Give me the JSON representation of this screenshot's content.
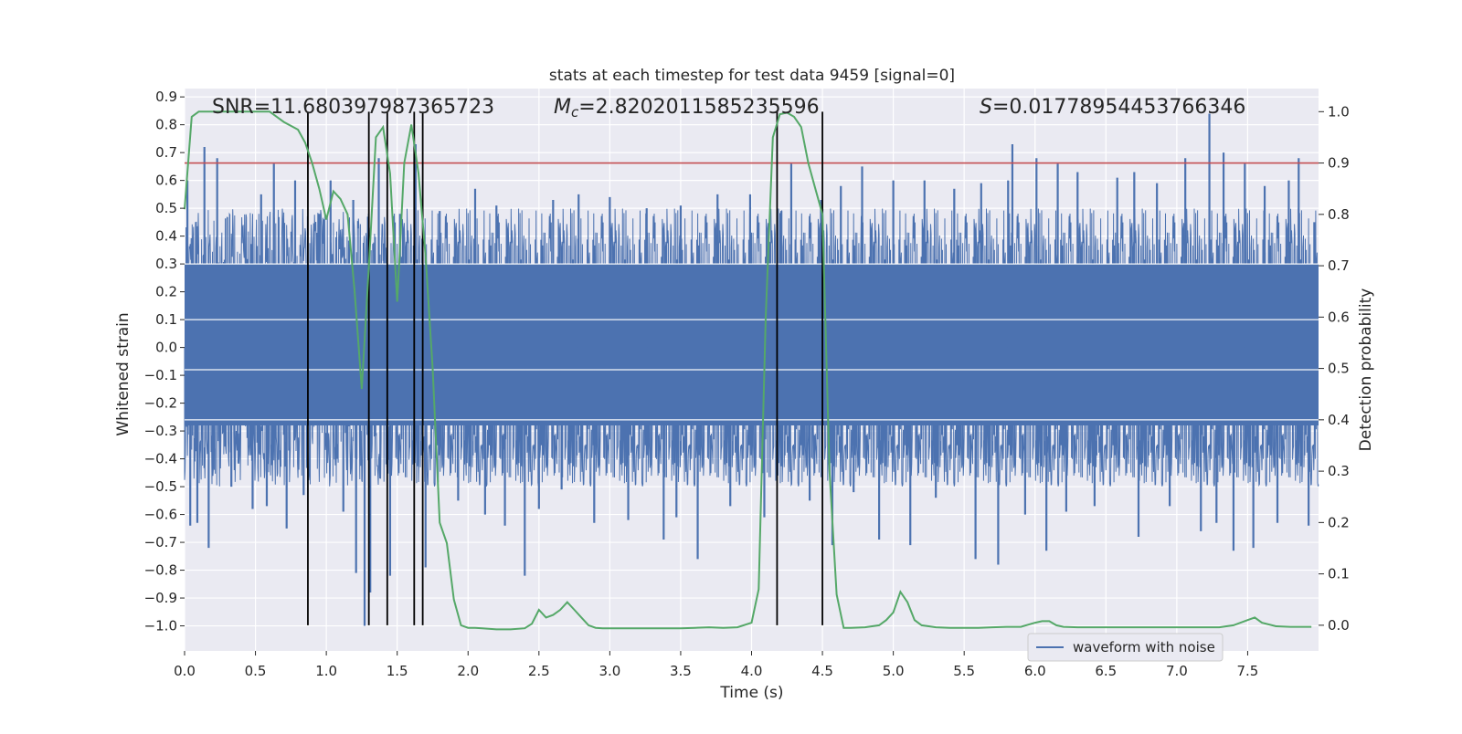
{
  "chart_data": {
    "type": "line",
    "title": "stats at each timestep for test data 9459 [signal=0]",
    "xlabel": "Time (s)",
    "ylabel": "Whitened strain",
    "y2label": "Detection probability",
    "xlim": [
      0,
      8
    ],
    "ylim": [
      -1.09,
      0.93
    ],
    "y2lim": [
      -0.05,
      1.045
    ],
    "x_ticks": [
      0.0,
      0.5,
      1.0,
      1.5,
      2.0,
      2.5,
      3.0,
      3.5,
      4.0,
      4.5,
      5.0,
      5.5,
      6.0,
      6.5,
      7.0,
      7.5
    ],
    "x_tick_labels": [
      "0.0",
      "0.5",
      "1.0",
      "1.5",
      "2.0",
      "2.5",
      "3.0",
      "3.5",
      "4.0",
      "4.5",
      "5.0",
      "5.5",
      "6.0",
      "6.5",
      "7.0",
      "7.5"
    ],
    "y_ticks": [
      0.9,
      0.8,
      0.7,
      0.6,
      0.5,
      0.4,
      0.3,
      0.2,
      0.1,
      0.0,
      -0.1,
      -0.2,
      -0.3,
      -0.4,
      -0.5,
      -0.6,
      -0.7,
      -0.8,
      -0.9,
      -1.0
    ],
    "y_tick_labels": [
      "0.9",
      "0.8",
      "0.7",
      "0.6",
      "0.5",
      "0.4",
      "0.3",
      "0.2",
      "0.1",
      "0.0",
      "−0.1",
      "−0.2",
      "−0.3",
      "−0.4",
      "−0.5",
      "−0.6",
      "−0.7",
      "−0.8",
      "−0.9",
      "−1.0"
    ],
    "y2_ticks": [
      1.0,
      0.9,
      0.8,
      0.7,
      0.6,
      0.5,
      0.4,
      0.3,
      0.2,
      0.1,
      0.0
    ],
    "y2_tick_labels": [
      "1.0",
      "0.9",
      "0.8",
      "0.7",
      "0.6",
      "0.5",
      "0.4",
      "0.3",
      "0.2",
      "0.1",
      "0.0"
    ],
    "annotations": {
      "snr": "SNR=11.680397987365723",
      "mc_symbol": "M",
      "mc_sub": "c",
      "mc_value": "=2.8202011585235596",
      "s_symbol": "S",
      "s_value": "=0.01778954453766346"
    },
    "threshold": 0.9,
    "vlines": [
      0.87,
      1.3,
      1.43,
      1.62,
      1.68,
      4.18,
      4.5
    ],
    "waveform": {
      "name": "waveform with noise",
      "band_low": -0.28,
      "band_high": 0.3,
      "spikes": [
        {
          "t": 0.02,
          "v": 0.6
        },
        {
          "t": 0.04,
          "v": -0.64
        },
        {
          "t": 0.09,
          "v": -0.63
        },
        {
          "t": 0.14,
          "v": 0.72
        },
        {
          "t": 0.17,
          "v": -0.72
        },
        {
          "t": 0.23,
          "v": 0.68
        },
        {
          "t": 0.33,
          "v": -0.5
        },
        {
          "t": 0.48,
          "v": -0.58
        },
        {
          "t": 0.54,
          "v": 0.55
        },
        {
          "t": 0.58,
          "v": -0.57
        },
        {
          "t": 0.63,
          "v": 0.66
        },
        {
          "t": 0.72,
          "v": -0.65
        },
        {
          "t": 0.78,
          "v": 0.6
        },
        {
          "t": 0.84,
          "v": -0.53
        },
        {
          "t": 0.95,
          "v": 0.48
        },
        {
          "t": 1.03,
          "v": 0.6
        },
        {
          "t": 1.12,
          "v": -0.59
        },
        {
          "t": 1.19,
          "v": 0.53
        },
        {
          "t": 1.21,
          "v": -0.81
        },
        {
          "t": 1.27,
          "v": -1.0
        },
        {
          "t": 1.31,
          "v": -0.88
        },
        {
          "t": 1.37,
          "v": 0.68
        },
        {
          "t": 1.45,
          "v": -0.82
        },
        {
          "t": 1.52,
          "v": 0.48
        },
        {
          "t": 1.63,
          "v": 0.73
        },
        {
          "t": 1.7,
          "v": -0.79
        },
        {
          "t": 1.8,
          "v": 0.49
        },
        {
          "t": 1.93,
          "v": -0.55
        },
        {
          "t": 2.05,
          "v": 0.57
        },
        {
          "t": 2.12,
          "v": -0.6
        },
        {
          "t": 2.2,
          "v": 0.51
        },
        {
          "t": 2.26,
          "v": -0.64
        },
        {
          "t": 2.4,
          "v": -0.82
        },
        {
          "t": 2.5,
          "v": -0.58
        },
        {
          "t": 2.6,
          "v": 0.53
        },
        {
          "t": 2.66,
          "v": -0.51
        },
        {
          "t": 2.78,
          "v": 0.55
        },
        {
          "t": 2.89,
          "v": -0.63
        },
        {
          "t": 3.0,
          "v": 0.54
        },
        {
          "t": 3.13,
          "v": -0.62
        },
        {
          "t": 3.26,
          "v": 0.5
        },
        {
          "t": 3.38,
          "v": -0.69
        },
        {
          "t": 3.47,
          "v": -0.61
        },
        {
          "t": 3.5,
          "v": 0.51
        },
        {
          "t": 3.62,
          "v": -0.76
        },
        {
          "t": 3.76,
          "v": 0.55
        },
        {
          "t": 3.85,
          "v": -0.57
        },
        {
          "t": 3.99,
          "v": 0.55
        },
        {
          "t": 4.09,
          "v": -0.61
        },
        {
          "t": 4.21,
          "v": 0.49
        },
        {
          "t": 4.28,
          "v": 0.66
        },
        {
          "t": 4.41,
          "v": -0.55
        },
        {
          "t": 4.49,
          "v": 0.53
        },
        {
          "t": 4.57,
          "v": -0.71
        },
        {
          "t": 4.63,
          "v": 0.58
        },
        {
          "t": 4.72,
          "v": -0.52
        },
        {
          "t": 4.78,
          "v": 0.65
        },
        {
          "t": 4.9,
          "v": -0.69
        },
        {
          "t": 5.0,
          "v": 0.6
        },
        {
          "t": 5.12,
          "v": -0.71
        },
        {
          "t": 5.22,
          "v": 0.6
        },
        {
          "t": 5.3,
          "v": -0.54
        },
        {
          "t": 5.43,
          "v": 0.57
        },
        {
          "t": 5.58,
          "v": -0.76
        },
        {
          "t": 5.62,
          "v": 0.59
        },
        {
          "t": 5.74,
          "v": -0.78
        },
        {
          "t": 5.81,
          "v": 0.6
        },
        {
          "t": 5.84,
          "v": 0.73
        },
        {
          "t": 5.93,
          "v": -0.6
        },
        {
          "t": 6.01,
          "v": 0.68
        },
        {
          "t": 6.08,
          "v": -0.73
        },
        {
          "t": 6.16,
          "v": 0.66
        },
        {
          "t": 6.22,
          "v": -0.59
        },
        {
          "t": 6.3,
          "v": 0.63
        },
        {
          "t": 6.42,
          "v": -0.57
        },
        {
          "t": 6.58,
          "v": 0.61
        },
        {
          "t": 6.7,
          "v": 0.63
        },
        {
          "t": 6.73,
          "v": -0.68
        },
        {
          "t": 6.86,
          "v": 0.59
        },
        {
          "t": 6.95,
          "v": -0.57
        },
        {
          "t": 7.06,
          "v": 0.68
        },
        {
          "t": 7.17,
          "v": -0.66
        },
        {
          "t": 7.23,
          "v": 0.84
        },
        {
          "t": 7.28,
          "v": -0.63
        },
        {
          "t": 7.33,
          "v": 0.7
        },
        {
          "t": 7.4,
          "v": -0.73
        },
        {
          "t": 7.48,
          "v": 0.66
        },
        {
          "t": 7.54,
          "v": -0.72
        },
        {
          "t": 7.62,
          "v": 0.58
        },
        {
          "t": 7.71,
          "v": -0.63
        },
        {
          "t": 7.79,
          "v": 0.6
        },
        {
          "t": 7.86,
          "v": 0.68
        },
        {
          "t": 7.93,
          "v": -0.64
        },
        {
          "t": 7.97,
          "v": 0.45
        }
      ]
    },
    "probability": {
      "t": [
        0.0,
        0.05,
        0.1,
        0.2,
        0.3,
        0.4,
        0.5,
        0.6,
        0.7,
        0.8,
        0.85,
        0.9,
        0.95,
        1.0,
        1.05,
        1.1,
        1.15,
        1.2,
        1.25,
        1.3,
        1.35,
        1.4,
        1.45,
        1.5,
        1.55,
        1.6,
        1.65,
        1.7,
        1.75,
        1.8,
        1.85,
        1.9,
        1.95,
        2.0,
        2.05,
        2.1,
        2.2,
        2.3,
        2.4,
        2.45,
        2.5,
        2.55,
        2.6,
        2.65,
        2.7,
        2.75,
        2.8,
        2.85,
        2.9,
        2.95,
        3.0,
        3.1,
        3.2,
        3.3,
        3.4,
        3.5,
        3.6,
        3.7,
        3.8,
        3.9,
        4.0,
        4.05,
        4.1,
        4.15,
        4.2,
        4.25,
        4.3,
        4.35,
        4.4,
        4.45,
        4.5,
        4.55,
        4.6,
        4.65,
        4.7,
        4.8,
        4.9,
        4.95,
        5.0,
        5.05,
        5.1,
        5.15,
        5.2,
        5.25,
        5.3,
        5.4,
        5.5,
        5.6,
        5.7,
        5.8,
        5.9,
        6.0,
        6.05,
        6.1,
        6.15,
        6.2,
        6.3,
        6.4,
        6.5,
        6.6,
        6.7,
        6.8,
        6.9,
        7.0,
        7.1,
        7.2,
        7.3,
        7.4,
        7.5,
        7.55,
        7.6,
        7.7,
        7.8,
        7.9,
        7.95
      ],
      "p": [
        0.81,
        0.99,
        1.0,
        1.0,
        1.0,
        1.0,
        1.0,
        1.0,
        0.98,
        0.965,
        0.94,
        0.9,
        0.85,
        0.79,
        0.845,
        0.83,
        0.8,
        0.65,
        0.46,
        0.7,
        0.95,
        0.97,
        0.88,
        0.63,
        0.9,
        0.975,
        0.88,
        0.72,
        0.5,
        0.2,
        0.16,
        0.05,
        0.0,
        -0.005,
        -0.005,
        -0.006,
        -0.008,
        -0.008,
        -0.006,
        0.003,
        0.03,
        0.015,
        0.02,
        0.03,
        0.045,
        0.03,
        0.015,
        0.0,
        -0.005,
        -0.006,
        -0.006,
        -0.006,
        -0.006,
        -0.006,
        -0.006,
        -0.006,
        -0.005,
        -0.004,
        -0.005,
        -0.004,
        0.005,
        0.07,
        0.6,
        0.95,
        0.995,
        0.998,
        0.99,
        0.97,
        0.9,
        0.85,
        0.8,
        0.3,
        0.06,
        -0.005,
        -0.005,
        -0.004,
        0.0,
        0.01,
        0.025,
        0.065,
        0.045,
        0.01,
        0.0,
        -0.002,
        -0.004,
        -0.005,
        -0.005,
        -0.005,
        -0.004,
        -0.003,
        -0.003,
        0.005,
        0.008,
        0.008,
        0.0,
        -0.003,
        -0.004,
        -0.004,
        -0.004,
        -0.004,
        -0.004,
        -0.004,
        -0.004,
        -0.004,
        -0.004,
        -0.004,
        -0.004,
        0.0,
        0.01,
        0.015,
        0.005,
        -0.002,
        -0.003,
        -0.003,
        -0.003
      ]
    },
    "legend": {
      "label": "waveform with noise",
      "placement": "lower-right"
    }
  },
  "colors": {
    "waveform": "#4c72b0",
    "probability": "#55a868",
    "threshold": "#c44e52",
    "vline": "#000000",
    "plot_bg": "#eaeaf2",
    "grid": "#ffffff"
  }
}
